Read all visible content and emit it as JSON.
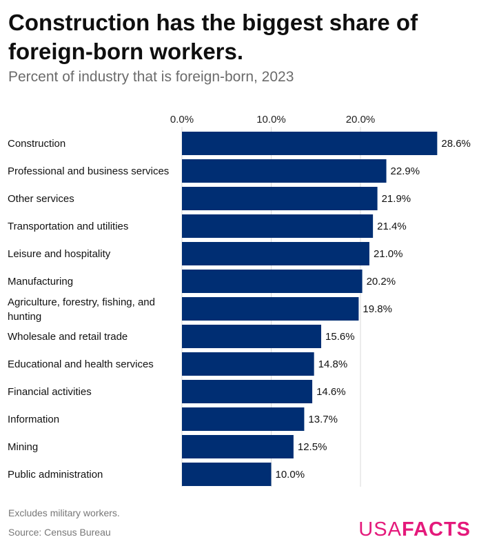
{
  "header": {
    "title": "Construction has the biggest share of foreign-born workers.",
    "subtitle": "Percent of industry that is foreign-born, 2023"
  },
  "footer": {
    "note": "Excludes military workers.",
    "source": "Source: Census Bureau",
    "logo_light": "USA",
    "logo_bold": "FACTS",
    "logo_color": "#e4197b"
  },
  "colors": {
    "bar": "#002e73",
    "grid": "#d9d9d9"
  },
  "chart_data": {
    "type": "bar",
    "orientation": "horizontal",
    "title": "Construction has the biggest share of foreign-born workers.",
    "subtitle": "Percent of industry that is foreign-born, 2023",
    "xlim": [
      0,
      30
    ],
    "ticks": [
      0,
      10,
      20
    ],
    "tick_labels": [
      "0.0%",
      "10.0%",
      "20.0%"
    ],
    "grid": true,
    "categories": [
      "Construction",
      "Professional and business services",
      "Other services",
      "Transportation and utilities",
      "Leisure and hospitality",
      "Manufacturing",
      "Agriculture, forestry, fishing, and hunting",
      "Wholesale and retail trade",
      "Educational and health services",
      "Financial activities",
      "Information",
      "Mining",
      "Public administration"
    ],
    "category_lines": [
      [
        "Construction"
      ],
      [
        "Professional and business services"
      ],
      [
        "Other services"
      ],
      [
        "Transportation and utilities"
      ],
      [
        "Leisure and hospitality"
      ],
      [
        "Manufacturing"
      ],
      [
        "Agriculture, forestry, fishing, and",
        "hunting"
      ],
      [
        "Wholesale and retail trade"
      ],
      [
        "Educational and health services"
      ],
      [
        "Financial activities"
      ],
      [
        "Information"
      ],
      [
        "Mining"
      ],
      [
        "Public administration"
      ]
    ],
    "values": [
      28.6,
      22.9,
      21.9,
      21.4,
      21.0,
      20.2,
      19.8,
      15.6,
      14.8,
      14.6,
      13.7,
      12.5,
      10.0
    ],
    "value_labels": [
      "28.6%",
      "22.9%",
      "21.9%",
      "21.4%",
      "21.0%",
      "20.2%",
      "19.8%",
      "15.6%",
      "14.8%",
      "14.6%",
      "13.7%",
      "12.5%",
      "10.0%"
    ]
  }
}
